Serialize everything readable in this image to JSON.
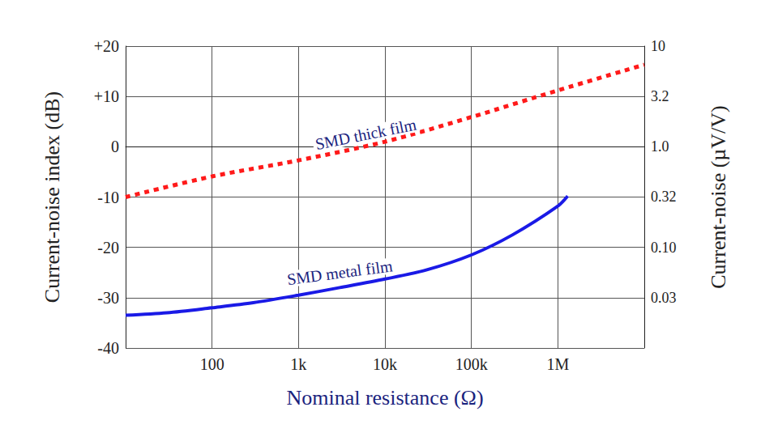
{
  "chart_data": {
    "type": "line",
    "x_label": "Nominal resistance (Ω)",
    "y_label": "Current-noise index (dB)",
    "y2_label": "Current-noise (µV/V)",
    "log": "x",
    "grid": true,
    "xlim": [
      10,
      10000000
    ],
    "xticks": [
      100,
      {
        "value": 1000,
        "label": "1k"
      },
      {
        "value": 10000,
        "label": "10k"
      },
      {
        "value": 100000,
        "label": "100k"
      },
      {
        "value": 1000000,
        "label": "1M"
      }
    ],
    "ylim": [
      -40,
      20
    ],
    "yticks": [
      -40,
      -30,
      -20,
      -10,
      0,
      {
        "value": 10,
        "label": "+10"
      },
      {
        "value": 20,
        "label": "+20"
      }
    ],
    "y2lim": [
      0.01,
      10
    ],
    "y2ticks": [
      10,
      3.2,
      {
        "value": 1,
        "label": "1.0"
      },
      0.32,
      {
        "value": 0.1,
        "label": "0.10"
      },
      {
        "value": 0.0316,
        "label": "0.03"
      }
    ],
    "series": [
      {
        "name": "SMD thick film",
        "color": "#ff1a1a",
        "line_style": "dotted",
        "x": [
          10,
          100,
          1000,
          10000,
          100000,
          1000000,
          10000000
        ],
        "values": [
          -10,
          -5.9,
          -2.7,
          1.0,
          5.9,
          11.2,
          16.3
        ]
      },
      {
        "name": "SMD metal film",
        "color": "#1a1ae6",
        "line_style": "solid",
        "x": [
          10,
          30,
          100,
          300,
          1000,
          3000,
          10000,
          30000,
          100000,
          300000,
          1000000,
          1300000
        ],
        "values": [
          -33.5,
          -33,
          -32,
          -31,
          -29.5,
          -28,
          -26.3,
          -24.5,
          -21.5,
          -17.5,
          -11.8,
          -9.8
        ]
      }
    ],
    "annotations": [
      {
        "text": "SMD thick film",
        "x": 6000,
        "y": 2.5
      },
      {
        "text": "SMD metal film",
        "x": 3000,
        "y": -25
      }
    ]
  }
}
